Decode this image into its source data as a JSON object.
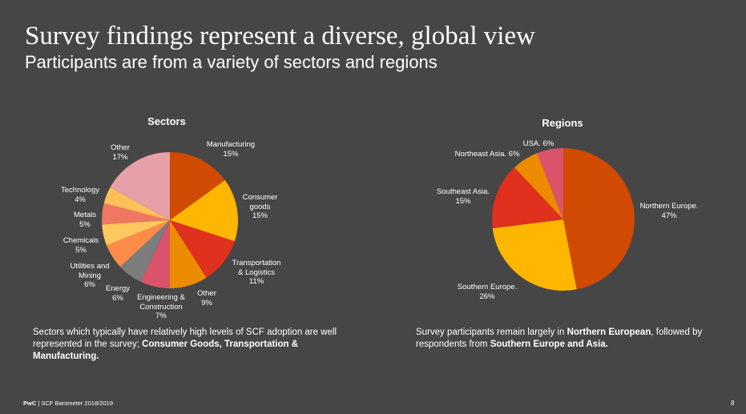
{
  "header": {
    "title": "Survey findings represent a diverse, global view",
    "subtitle": "Participants are from a variety of sectors and regions"
  },
  "chart_data": [
    {
      "type": "pie",
      "title": "Sectors",
      "slices": [
        {
          "name": "Manufacturing",
          "value": 15,
          "pct_label": "15%",
          "color": "#d04a02"
        },
        {
          "name": "Consumer goods",
          "value": 15,
          "pct_label": "15%",
          "color": "#ffb600"
        },
        {
          "name": "Transportation & Logistics",
          "value": 11,
          "pct_label": "11%",
          "color": "#e0301e"
        },
        {
          "name": "Other",
          "value": 9,
          "pct_label": "9%",
          "color": "#eb8c00"
        },
        {
          "name": "Engineering & Construction",
          "value": 7,
          "pct_label": "7%",
          "color": "#db536a"
        },
        {
          "name": "Energy",
          "value": 6,
          "pct_label": "6%",
          "color": "#7d7d7d"
        },
        {
          "name": "Utilities and Mining",
          "value": 6,
          "pct_label": "6%",
          "color": "#fd8c48"
        },
        {
          "name": "Chemicals",
          "value": 5,
          "pct_label": "5%",
          "color": "#ffc85f"
        },
        {
          "name": "Metals",
          "value": 5,
          "pct_label": "5%",
          "color": "#f07860"
        },
        {
          "name": "Technology",
          "value": 4,
          "pct_label": "4%",
          "color": "#ffbf58"
        },
        {
          "name": "Other",
          "value": 17,
          "pct_label": "17%",
          "color": "#e8a0a8"
        }
      ]
    },
    {
      "type": "pie",
      "title": "Regions",
      "slices": [
        {
          "name": "Northern Europe.",
          "value": 47,
          "pct_label": "47%",
          "color": "#d04a02"
        },
        {
          "name": "Southern Europe.",
          "value": 26,
          "pct_label": "26%",
          "color": "#ffb600"
        },
        {
          "name": "Southeast Asia.",
          "value": 15,
          "pct_label": "15%",
          "color": "#e0301e"
        },
        {
          "name": "Northeast Asia.",
          "value": 6,
          "pct_label": "6%",
          "color": "#eb8c00"
        },
        {
          "name": "USA.",
          "value": 6,
          "pct_label": "6%",
          "color": "#db536a"
        }
      ]
    }
  ],
  "sector_labels": [
    {
      "line1": "Manufacturing",
      "line2": "15%"
    },
    {
      "line1": "Consumer",
      "line2": "goods",
      "line3": "15%"
    },
    {
      "line1": "Transportation",
      "line2": "& Logistics",
      "line3": "11%"
    },
    {
      "line1": "Other",
      "line2": "9%"
    },
    {
      "line1": "Engineering &",
      "line2": "Construction",
      "line3": "7%"
    },
    {
      "line1": "Energy",
      "line2": "6%"
    },
    {
      "line1": "Utilities and",
      "line2": "Mining",
      "line3": "6%"
    },
    {
      "line1": "Chemicals",
      "line2": "5%"
    },
    {
      "line1": "Metals",
      "line2": "5%"
    },
    {
      "line1": "Technology",
      "line2": "4%"
    },
    {
      "line1": "Other",
      "line2": "17%"
    }
  ],
  "region_labels": [
    {
      "line1": "Northern Europe.",
      "line2": "47%"
    },
    {
      "line1": "Southern Europe.",
      "line2": "26%"
    },
    {
      "line1": "Southeast Asia.",
      "line2": "15%"
    },
    {
      "line1": "Northeast Asia. 6%"
    },
    {
      "line1": "USA. 6%"
    }
  ],
  "captions": {
    "left": {
      "pre": "Sectors which typically have relatively high levels of SCF adoption are well represented in the survey; ",
      "bold": "Consumer Goods, Transportation & Manufacturing."
    },
    "right": {
      "pre": "Survey participants remain largely in ",
      "bold1": "Northern European",
      "mid": ", followed by respondents from ",
      "bold2": "Southern Europe and Asia."
    }
  },
  "footer": {
    "brand": "PwC",
    "text": " | SCF Barometer 2018/2019",
    "page": "8"
  }
}
